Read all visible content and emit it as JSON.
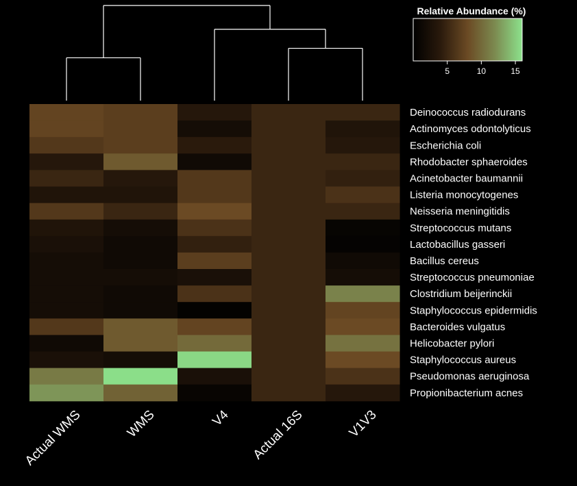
{
  "chart_data": {
    "type": "heatmap",
    "legend": {
      "title": "Relative Abundance (%)",
      "ticks": [
        5,
        10,
        15
      ],
      "range": [
        0,
        16
      ],
      "colors": [
        "#000000",
        "#2a1a0c",
        "#6b4a24",
        "#7c8a50",
        "#8ce28c"
      ]
    },
    "columns": [
      "Actual WMS",
      "WMS",
      "V4",
      "Actual 16S",
      "V1V3"
    ],
    "rows": [
      "Deinococcus radiodurans",
      "Actinomyces odontolyticus",
      "Escherichia coli",
      "Rhodobacter sphaeroides",
      "Acinetobacter baumannii",
      "Listeria monocytogenes",
      "Neisseria meningitidis",
      "Streptococcus mutans",
      "Lactobacillus gasseri",
      "Bacillus cereus",
      "Streptococcus pneumoniae",
      "Clostridium beijerinckii",
      "Staphylococcus epidermidis",
      "Bacteroides vulgatus",
      "Helicobacter pylori",
      "Staphylococcus aureus",
      "Pseudomonas aeruginosa",
      "Propionibacterium acnes"
    ],
    "values": [
      [
        7.5,
        7.0,
        3.5,
        5.0,
        5.0
      ],
      [
        7.5,
        7.0,
        2.0,
        5.0,
        3.0
      ],
      [
        6.5,
        7.0,
        4.0,
        5.0,
        3.5
      ],
      [
        3.5,
        9.0,
        1.5,
        5.0,
        5.0
      ],
      [
        5.0,
        3.5,
        6.5,
        5.0,
        4.5
      ],
      [
        3.0,
        3.0,
        6.5,
        5.0,
        6.0
      ],
      [
        6.5,
        5.0,
        8.0,
        5.0,
        5.0
      ],
      [
        3.0,
        2.0,
        6.0,
        5.0,
        0.7
      ],
      [
        2.5,
        1.5,
        4.5,
        5.0,
        0.5
      ],
      [
        2.0,
        1.5,
        7.0,
        5.0,
        1.5
      ],
      [
        2.0,
        2.0,
        2.5,
        5.0,
        2.0
      ],
      [
        2.0,
        1.5,
        6.0,
        5.0,
        11.5
      ],
      [
        2.0,
        1.5,
        0.4,
        5.0,
        7.5
      ],
      [
        6.5,
        9.0,
        7.5,
        5.0,
        8.0
      ],
      [
        1.5,
        9.0,
        10.0,
        5.0,
        10.5
      ],
      [
        2.5,
        2.0,
        15.5,
        5.0,
        8.0
      ],
      [
        11.0,
        15.8,
        2.5,
        5.0,
        6.0
      ],
      [
        12.5,
        9.5,
        0.8,
        5.0,
        3.5
      ]
    ],
    "dendrogram": {
      "leaf_order": [
        "Actual WMS",
        "WMS",
        "V4",
        "Actual 16S",
        "V1V3"
      ],
      "merges": [
        {
          "left": "Actual WMS",
          "right": "WMS",
          "height": 0.45
        },
        {
          "left": "Actual 16S",
          "right": "V1V3",
          "height": 0.55
        },
        {
          "left": "V4",
          "right": "Actual 16S+V1V3",
          "height": 0.75
        },
        {
          "left": "Actual WMS+WMS",
          "right": "V4+Actual 16S+V1V3",
          "height": 1.0
        }
      ]
    }
  }
}
